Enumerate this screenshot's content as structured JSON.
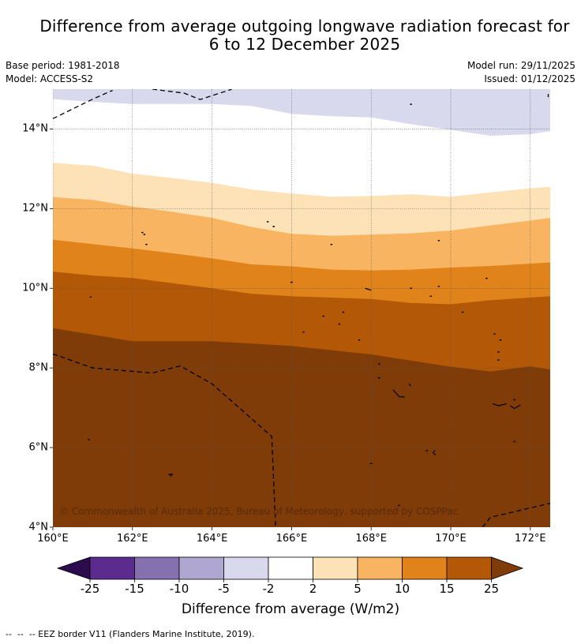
{
  "title_line1": "Difference from average outgoing longwave radiation forecast for",
  "title_line2": "6 to 12 December 2025",
  "base_period": "Base period: 1981-2018",
  "model": "Model: ACCESS-S2",
  "model_run": "Model run: 29/11/2025",
  "issued": "Issued: 01/12/2025",
  "credit": "© Commonwealth of Australia 2025, Bureau of Meteorology, supported by COSPPac",
  "x_ticks": [
    "160°E",
    "162°E",
    "164°E",
    "166°E",
    "168°E",
    "170°E",
    "172°E"
  ],
  "y_ticks": [
    "14°N",
    "12°N",
    "10°N",
    "8°N",
    "6°N",
    "4°N"
  ],
  "colorbar": {
    "labels": [
      "-25",
      "-15",
      "-10",
      "-5",
      "-2",
      "2",
      "5",
      "10",
      "15",
      "25"
    ],
    "colors": [
      "#2d0c4e",
      "#5c2b8e",
      "#8571b0",
      "#b0a6d2",
      "#d8d9ec",
      "#ffffff",
      "#fde2b8",
      "#f9b462",
      "#e0831a",
      "#b35807",
      "#7f3b08"
    ],
    "title": "Difference from average (W/m2)"
  },
  "footnote": "--  --  -- EEZ border V11 (Flanders Marine Institute, 2019).",
  "map_extent": {
    "lon": [
      160,
      172.5
    ],
    "lat": [
      4,
      15
    ]
  },
  "bands": [
    {
      "color": "#7f3b08",
      "lower": null
    },
    {
      "color": "#b35807",
      "lower": [
        [
          160,
          9.0
        ],
        [
          162,
          8.67
        ],
        [
          164,
          8.67
        ],
        [
          166,
          8.55
        ],
        [
          168,
          8.34
        ],
        [
          170,
          8.03
        ],
        [
          171,
          7.91
        ],
        [
          172,
          8.04
        ],
        [
          172.5,
          7.96
        ]
      ]
    },
    {
      "color": "#e0831a",
      "lower": [
        [
          160,
          10.42
        ],
        [
          161,
          10.32
        ],
        [
          162,
          10.26
        ],
        [
          164,
          10.0
        ],
        [
          165,
          9.86
        ],
        [
          166,
          9.8
        ],
        [
          168,
          9.73
        ],
        [
          169,
          9.63
        ],
        [
          170,
          9.6
        ],
        [
          171,
          9.7
        ],
        [
          172.5,
          9.8
        ]
      ]
    },
    {
      "color": "#f9b462",
      "lower": [
        [
          160,
          11.22
        ],
        [
          161,
          11.11
        ],
        [
          162,
          11.0
        ],
        [
          163,
          10.88
        ],
        [
          164,
          10.75
        ],
        [
          165,
          10.6
        ],
        [
          166,
          10.55
        ],
        [
          167,
          10.47
        ],
        [
          168,
          10.45
        ],
        [
          169,
          10.47
        ],
        [
          170,
          10.52
        ],
        [
          171,
          10.56
        ],
        [
          172.5,
          10.65
        ]
      ]
    },
    {
      "color": "#fde2b8",
      "lower": [
        [
          160,
          12.29
        ],
        [
          161,
          12.22
        ],
        [
          162,
          12.05
        ],
        [
          163,
          11.92
        ],
        [
          164,
          11.77
        ],
        [
          165,
          11.54
        ],
        [
          166,
          11.37
        ],
        [
          167,
          11.32
        ],
        [
          168,
          11.35
        ],
        [
          169,
          11.38
        ],
        [
          170,
          11.45
        ],
        [
          171,
          11.58
        ],
        [
          172,
          11.7
        ],
        [
          172.5,
          11.77
        ]
      ]
    },
    {
      "color": "#ffffff",
      "lower": [
        [
          160,
          13.15
        ],
        [
          161,
          13.08
        ],
        [
          162,
          12.88
        ],
        [
          163,
          12.77
        ],
        [
          164,
          12.65
        ],
        [
          165,
          12.48
        ],
        [
          166,
          12.38
        ],
        [
          167,
          12.3
        ],
        [
          168,
          12.32
        ],
        [
          169,
          12.36
        ],
        [
          170,
          12.3
        ],
        [
          171,
          12.41
        ],
        [
          172,
          12.51
        ],
        [
          172.5,
          12.55
        ]
      ]
    },
    {
      "color": "#d8d9ec",
      "lower": [
        [
          160,
          14.75
        ],
        [
          161,
          14.68
        ],
        [
          162,
          14.63
        ],
        [
          163,
          14.63
        ],
        [
          164,
          14.63
        ],
        [
          165,
          14.58
        ],
        [
          166,
          14.38
        ],
        [
          167,
          14.32
        ],
        [
          168,
          14.29
        ],
        [
          169,
          14.12
        ],
        [
          170,
          13.98
        ],
        [
          171,
          13.83
        ],
        [
          172,
          13.87
        ],
        [
          172.5,
          13.95
        ]
      ]
    }
  ],
  "eez_lines": [
    [
      [
        160,
        8.35
      ],
      [
        161,
        8.0
      ],
      [
        162.5,
        7.87
      ],
      [
        163.2,
        8.05
      ],
      [
        164,
        7.6
      ],
      [
        165.5,
        6.28
      ],
      [
        165.6,
        4.0
      ]
    ],
    [
      [
        160,
        14.26
      ],
      [
        161,
        14.75
      ],
      [
        161.5,
        14.97
      ]
    ],
    [
      [
        162.5,
        15.0
      ],
      [
        163.3,
        14.9
      ],
      [
        163.7,
        14.74
      ],
      [
        164.5,
        15.0
      ]
    ],
    [
      [
        170.8,
        4.0
      ],
      [
        171.0,
        4.25
      ],
      [
        172.5,
        4.6
      ]
    ],
    [
      [
        172.45,
        14.88
      ],
      [
        172.45,
        14.8
      ]
    ]
  ],
  "islands": [
    [
      162.25,
      11.4
    ],
    [
      162.3,
      11.35
    ],
    [
      162.35,
      11.1
    ],
    [
      165.4,
      11.67
    ],
    [
      165.55,
      11.55
    ],
    [
      167.0,
      11.1
    ],
    [
      169.0,
      14.62
    ],
    [
      169.7,
      11.2
    ],
    [
      166.0,
      10.15
    ],
    [
      169.0,
      10.0
    ],
    [
      169.5,
      9.8
    ],
    [
      169.7,
      10.05
    ],
    [
      170.3,
      9.4
    ],
    [
      170.9,
      10.25
    ],
    [
      166.8,
      9.3
    ],
    [
      166.3,
      8.9
    ],
    [
      167.2,
      9.1
    ],
    [
      167.3,
      9.4
    ],
    [
      167.7,
      8.7
    ],
    [
      168.2,
      8.1
    ],
    [
      168.2,
      7.75
    ],
    [
      160.9,
      6.2
    ],
    [
      169.4,
      5.92
    ],
    [
      169.6,
      5.83
    ],
    [
      171.1,
      8.85
    ],
    [
      171.2,
      8.2
    ],
    [
      171.2,
      8.4
    ],
    [
      171.25,
      8.7
    ],
    [
      171.6,
      6.15
    ],
    [
      168.7,
      4.55
    ],
    [
      168.0,
      5.6
    ],
    [
      171.6,
      7.2
    ],
    [
      160.95,
      9.78
    ]
  ],
  "atolls": [
    [
      [
        167.85,
        10.0
      ],
      [
        168.0,
        9.95
      ]
    ],
    [
      [
        168.55,
        7.45
      ],
      [
        168.7,
        7.28
      ],
      [
        168.85,
        7.27
      ]
    ],
    [
      [
        168.95,
        7.6
      ],
      [
        169.0,
        7.55
      ]
    ],
    [
      [
        171.05,
        7.1
      ],
      [
        171.2,
        7.05
      ],
      [
        171.4,
        7.1
      ]
    ],
    [
      [
        171.5,
        7.05
      ],
      [
        171.6,
        6.98
      ],
      [
        171.75,
        7.07
      ]
    ],
    [
      [
        162.9,
        5.32
      ],
      [
        163.0,
        5.33
      ],
      [
        162.95,
        5.27
      ]
    ],
    [
      [
        169.55,
        5.85
      ],
      [
        169.6,
        5.93
      ]
    ]
  ]
}
